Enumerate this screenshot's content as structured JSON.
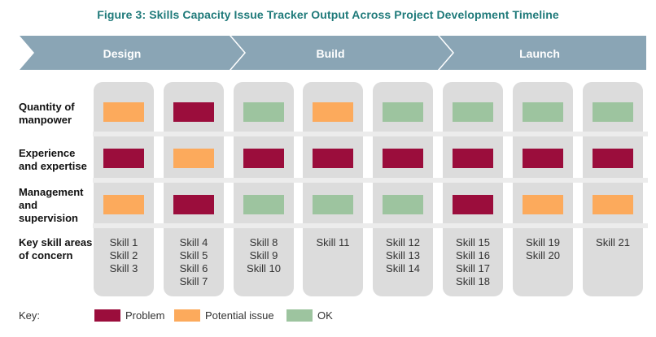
{
  "title": "Figure 3: Skills Capacity Issue Tracker Output Across Project Development Timeline",
  "colors": {
    "problem": "#9b0d3c",
    "potential": "#fcaa5c",
    "ok": "#9dc49f",
    "phase_arrow": "#8aa5b5",
    "column_bg": "#dcdcdc",
    "title": "#1f7a7a"
  },
  "phases": [
    {
      "label": "Design"
    },
    {
      "label": "Build"
    },
    {
      "label": "Launch"
    }
  ],
  "row_labels": [
    {
      "label": "Quantity of manpower"
    },
    {
      "label": "Experience and expertise"
    },
    {
      "label": "Management and supervision"
    },
    {
      "label": "Key skill areas of concern"
    }
  ],
  "columns": [
    {
      "status": [
        "potential",
        "problem",
        "potential"
      ],
      "skills": [
        "Skill 1",
        "Skill 2",
        "Skill 3"
      ]
    },
    {
      "status": [
        "problem",
        "potential",
        "problem"
      ],
      "skills": [
        "Skill 4",
        "Skill 5",
        "Skill 6",
        "Skill 7"
      ]
    },
    {
      "status": [
        "ok",
        "problem",
        "ok"
      ],
      "skills": [
        "Skill 8",
        "Skill 9",
        "Skill 10"
      ]
    },
    {
      "status": [
        "potential",
        "problem",
        "ok"
      ],
      "skills": [
        "Skill 11"
      ]
    },
    {
      "status": [
        "ok",
        "problem",
        "ok"
      ],
      "skills": [
        "Skill 12",
        "Skill 13",
        "Skill 14"
      ]
    },
    {
      "status": [
        "ok",
        "problem",
        "problem"
      ],
      "skills": [
        "Skill 15",
        "Skill 16",
        "Skill 17",
        "Skill 18"
      ]
    },
    {
      "status": [
        "ok",
        "problem",
        "potential"
      ],
      "skills": [
        "Skill 19",
        "Skill 20"
      ]
    },
    {
      "status": [
        "ok",
        "problem",
        "potential"
      ],
      "skills": [
        "Skill 21"
      ]
    }
  ],
  "key": {
    "label": "Key:",
    "items": [
      {
        "status": "problem",
        "label": "Problem"
      },
      {
        "status": "potential",
        "label": "Potential issue"
      },
      {
        "status": "ok",
        "label": "OK"
      }
    ]
  }
}
